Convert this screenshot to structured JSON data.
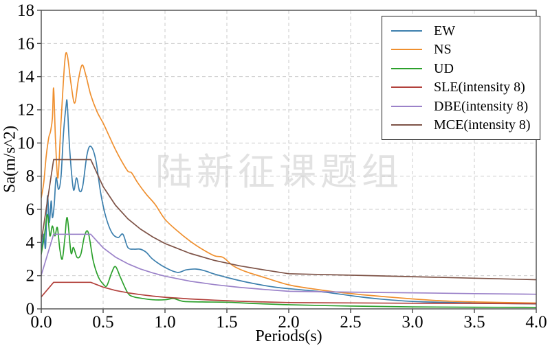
{
  "watermark": "陆新征课题组",
  "chart_data": {
    "type": "line",
    "title": "",
    "xlabel": "Periods(s)",
    "ylabel": "Sa(m/s^2)",
    "xlim": [
      0,
      4
    ],
    "ylim": [
      0,
      18
    ],
    "grid": true,
    "legend_position": "top-right",
    "axis_color": "#4a4a4a",
    "grid_color": "#cbcbcb",
    "xticks": {
      "values": [
        0,
        0.5,
        1.0,
        1.5,
        2.0,
        2.5,
        3.0,
        3.5,
        4.0
      ],
      "labels": [
        "0.0",
        "0.5",
        "1.0",
        "1.5",
        "2.0",
        "2.5",
        "3.0",
        "3.5",
        "4.0"
      ]
    },
    "yticks": {
      "values": [
        0,
        2,
        4,
        6,
        8,
        10,
        12,
        14,
        16,
        18
      ],
      "labels": [
        "0",
        "2",
        "4",
        "6",
        "8",
        "10",
        "12",
        "14",
        "16",
        "18"
      ]
    },
    "series": [
      {
        "name": "EW",
        "color": "#3c7fad",
        "smooth": true,
        "x": [
          0,
          0.02,
          0.035,
          0.05,
          0.065,
          0.08,
          0.09,
          0.105,
          0.12,
          0.14,
          0.16,
          0.18,
          0.2,
          0.21,
          0.23,
          0.26,
          0.285,
          0.31,
          0.335,
          0.37,
          0.4,
          0.44,
          0.48,
          0.52,
          0.57,
          0.62,
          0.66,
          0.7,
          0.75,
          0.8,
          0.85,
          0.9,
          1.0,
          1.1,
          1.17,
          1.25,
          1.32,
          1.4,
          1.55,
          1.7,
          1.9,
          2.1,
          2.3,
          2.5,
          2.7,
          3.0,
          3.5,
          4.0
        ],
        "y": [
          3.4,
          4.5,
          3.7,
          6.8,
          5.2,
          6.5,
          5.5,
          6.3,
          7.9,
          7.2,
          8.0,
          10.6,
          12.2,
          12.4,
          9.6,
          7.2,
          7.9,
          7.1,
          7.4,
          9.3,
          9.8,
          9.0,
          7.0,
          5.6,
          4.6,
          4.3,
          4.5,
          3.7,
          3.6,
          3.6,
          3.4,
          3.0,
          2.5,
          2.2,
          2.35,
          2.4,
          2.3,
          2.1,
          1.8,
          1.55,
          1.3,
          1.15,
          1.0,
          0.8,
          0.62,
          0.45,
          0.35,
          0.3
        ]
      },
      {
        "name": "NS",
        "color": "#ef8f2e",
        "smooth": true,
        "x": [
          0,
          0.02,
          0.04,
          0.06,
          0.075,
          0.09,
          0.1,
          0.115,
          0.135,
          0.16,
          0.19,
          0.21,
          0.24,
          0.27,
          0.3,
          0.33,
          0.36,
          0.4,
          0.45,
          0.5,
          0.55,
          0.6,
          0.65,
          0.7,
          0.73,
          0.78,
          0.85,
          0.92,
          1.0,
          1.1,
          1.2,
          1.3,
          1.4,
          1.47,
          1.55,
          1.65,
          1.8,
          2.0,
          2.2,
          2.4,
          2.6,
          2.8,
          3.0,
          3.25,
          3.5,
          4.0
        ],
        "y": [
          6.7,
          7.6,
          9.2,
          10.3,
          10.7,
          11.5,
          13.3,
          10.2,
          7.9,
          11.3,
          14.9,
          15.3,
          13.6,
          12.4,
          13.8,
          14.7,
          14.1,
          12.9,
          11.9,
          11.2,
          10.4,
          9.6,
          8.9,
          8.3,
          8.2,
          7.6,
          6.9,
          6.3,
          5.4,
          4.7,
          4.1,
          3.6,
          3.2,
          3.1,
          2.6,
          2.25,
          1.9,
          1.45,
          1.2,
          1.0,
          0.85,
          0.72,
          0.6,
          0.48,
          0.42,
          0.35
        ]
      },
      {
        "name": "UD",
        "color": "#2ca02c",
        "smooth": true,
        "x": [
          0,
          0.025,
          0.05,
          0.07,
          0.09,
          0.11,
          0.13,
          0.15,
          0.17,
          0.19,
          0.21,
          0.24,
          0.26,
          0.29,
          0.32,
          0.35,
          0.38,
          0.42,
          0.46,
          0.5,
          0.53,
          0.57,
          0.6,
          0.64,
          0.7,
          0.75,
          0.8,
          0.9,
          1.0,
          1.07,
          1.15,
          1.3,
          1.5,
          1.7,
          2.0,
          2.5,
          3.0,
          3.5,
          4.0
        ],
        "y": [
          3.3,
          4.4,
          5.7,
          4.4,
          5.0,
          4.4,
          4.9,
          3.6,
          3.0,
          4.2,
          5.5,
          3.4,
          3.7,
          3.1,
          3.3,
          4.4,
          4.6,
          2.9,
          1.95,
          1.5,
          1.4,
          2.2,
          2.55,
          1.9,
          0.95,
          0.72,
          0.65,
          0.55,
          0.55,
          0.62,
          0.45,
          0.42,
          0.4,
          0.33,
          0.25,
          0.17,
          0.12,
          0.1,
          0.09
        ]
      },
      {
        "name": "SLE(intensity 8)",
        "color": "#b2413c",
        "smooth": false,
        "x": [
          0,
          0.1,
          0.4,
          0.5,
          0.6,
          0.7,
          0.8,
          0.9,
          1.0,
          1.2,
          1.4,
          1.6,
          1.8,
          2.0,
          2.2,
          2.5,
          3.0,
          3.5,
          4.0
        ],
        "y": [
          0.72,
          1.6,
          1.6,
          1.31,
          1.11,
          0.97,
          0.86,
          0.77,
          0.7,
          0.6,
          0.52,
          0.46,
          0.42,
          0.38,
          0.37,
          0.36,
          0.34,
          0.33,
          0.31
        ]
      },
      {
        "name": "DBE(intensity 8)",
        "color": "#9b82c9",
        "smooth": false,
        "x": [
          0,
          0.1,
          0.4,
          0.5,
          0.6,
          0.7,
          0.8,
          0.9,
          1.0,
          1.2,
          1.4,
          1.6,
          1.8,
          2.0,
          2.2,
          2.5,
          3.0,
          3.5,
          4.0
        ],
        "y": [
          2.03,
          4.5,
          4.5,
          3.68,
          3.12,
          2.72,
          2.41,
          2.17,
          1.97,
          1.67,
          1.46,
          1.3,
          1.17,
          1.06,
          1.04,
          1.01,
          0.97,
          0.92,
          0.88
        ]
      },
      {
        "name": "MCE(intensity 8)",
        "color": "#7d5246",
        "smooth": false,
        "x": [
          0,
          0.1,
          0.4,
          0.5,
          0.6,
          0.7,
          0.8,
          0.9,
          1.0,
          1.2,
          1.4,
          1.6,
          1.8,
          2.0,
          2.2,
          2.5,
          3.0,
          3.5,
          4.0
        ],
        "y": [
          4.05,
          9.0,
          9.0,
          7.37,
          6.25,
          5.43,
          4.82,
          4.34,
          3.94,
          3.35,
          2.92,
          2.6,
          2.35,
          2.12,
          2.08,
          2.03,
          1.94,
          1.85,
          1.76
        ]
      }
    ]
  }
}
